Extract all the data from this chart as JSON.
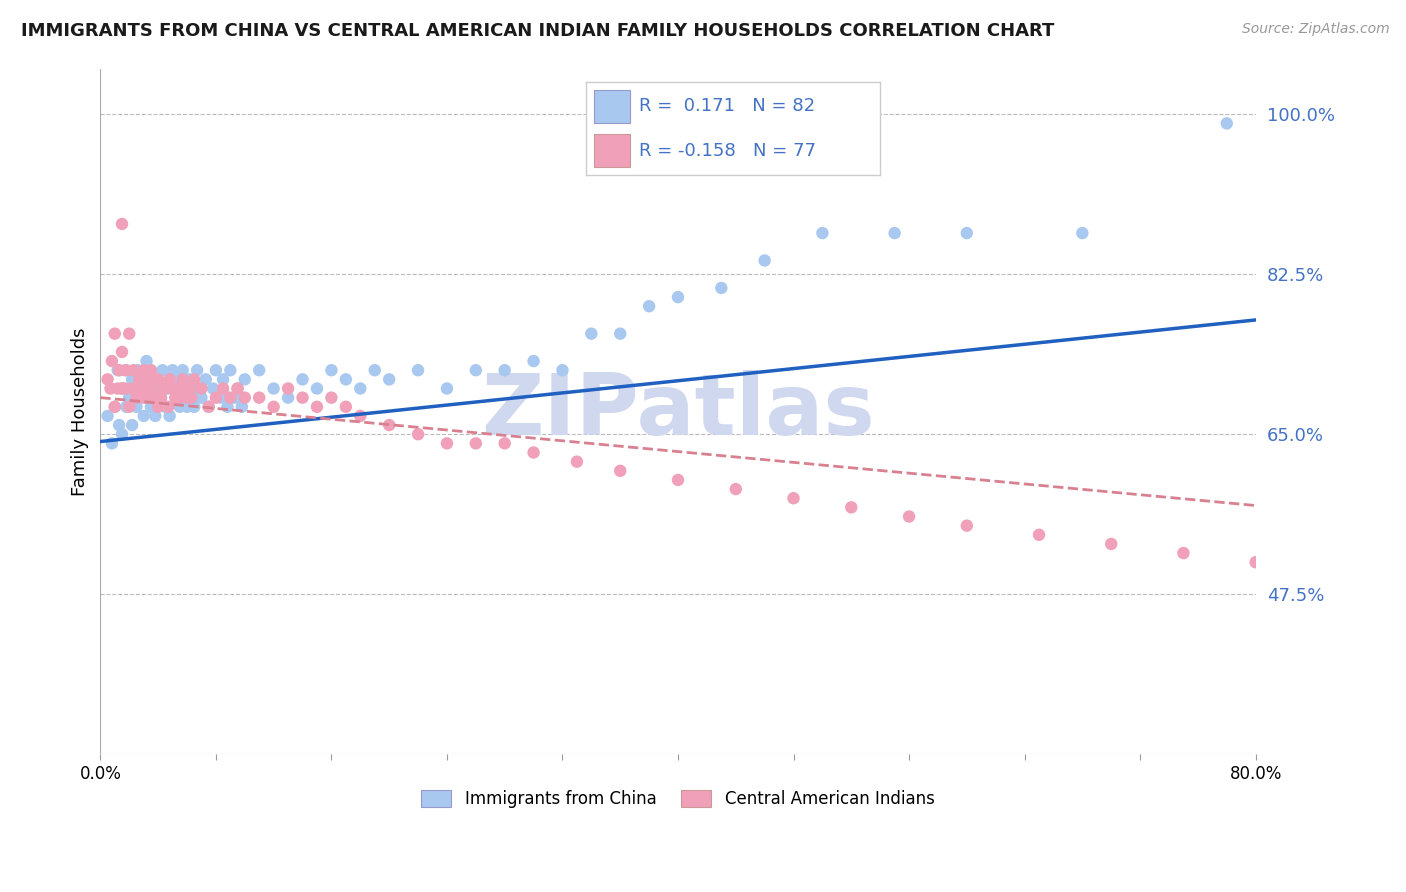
{
  "title": "IMMIGRANTS FROM CHINA VS CENTRAL AMERICAN INDIAN FAMILY HOUSEHOLDS CORRELATION CHART",
  "source": "Source: ZipAtlas.com",
  "ylabel": "Family Households",
  "y_ticks": [
    0.475,
    0.65,
    0.825,
    1.0
  ],
  "y_tick_labels": [
    "47.5%",
    "65.0%",
    "82.5%",
    "100.0%"
  ],
  "x_min": 0.0,
  "x_max": 0.8,
  "y_min": 0.3,
  "y_max": 1.05,
  "color_blue": "#A8C8F0",
  "color_pink": "#F0A0B8",
  "trendline_blue": "#2060C0",
  "trendline_pink": "#D88090",
  "label_china": "Immigrants from China",
  "label_indian": "Central American Indians",
  "watermark_text": "ZIPatlas",
  "watermark_color": "#D0D8F0",
  "blue_trendline_start_y": 0.642,
  "blue_trendline_end_y": 0.775,
  "pink_trendline_start_y": 0.69,
  "pink_trendline_end_y": 0.572,
  "blue_x": [
    0.005,
    0.008,
    0.01,
    0.012,
    0.013,
    0.015,
    0.015,
    0.017,
    0.018,
    0.02,
    0.022,
    0.022,
    0.023,
    0.025,
    0.026,
    0.028,
    0.03,
    0.03,
    0.032,
    0.033,
    0.035,
    0.035,
    0.037,
    0.038,
    0.04,
    0.042,
    0.043,
    0.045,
    0.047,
    0.048,
    0.05,
    0.052,
    0.053,
    0.055,
    0.057,
    0.058,
    0.06,
    0.062,
    0.063,
    0.065,
    0.067,
    0.068,
    0.07,
    0.073,
    0.075,
    0.078,
    0.08,
    0.083,
    0.085,
    0.088,
    0.09,
    0.093,
    0.095,
    0.098,
    0.1,
    0.11,
    0.12,
    0.13,
    0.14,
    0.15,
    0.16,
    0.17,
    0.18,
    0.19,
    0.2,
    0.22,
    0.24,
    0.26,
    0.28,
    0.3,
    0.32,
    0.34,
    0.36,
    0.38,
    0.4,
    0.43,
    0.46,
    0.5,
    0.55,
    0.6,
    0.68,
    0.78
  ],
  "blue_y": [
    0.67,
    0.64,
    0.68,
    0.72,
    0.66,
    0.7,
    0.65,
    0.72,
    0.68,
    0.69,
    0.71,
    0.66,
    0.7,
    0.68,
    0.72,
    0.69,
    0.7,
    0.67,
    0.73,
    0.7,
    0.68,
    0.72,
    0.7,
    0.67,
    0.71,
    0.69,
    0.72,
    0.68,
    0.7,
    0.67,
    0.72,
    0.69,
    0.71,
    0.68,
    0.72,
    0.7,
    0.68,
    0.71,
    0.69,
    0.68,
    0.72,
    0.7,
    0.69,
    0.71,
    0.68,
    0.7,
    0.72,
    0.69,
    0.71,
    0.68,
    0.72,
    0.69,
    0.7,
    0.68,
    0.71,
    0.72,
    0.7,
    0.69,
    0.71,
    0.7,
    0.72,
    0.71,
    0.7,
    0.72,
    0.71,
    0.72,
    0.7,
    0.72,
    0.72,
    0.73,
    0.72,
    0.76,
    0.76,
    0.79,
    0.8,
    0.81,
    0.84,
    0.87,
    0.87,
    0.87,
    0.87,
    0.99
  ],
  "pink_x": [
    0.005,
    0.007,
    0.008,
    0.01,
    0.01,
    0.012,
    0.013,
    0.015,
    0.015,
    0.017,
    0.018,
    0.02,
    0.02,
    0.022,
    0.023,
    0.025,
    0.027,
    0.028,
    0.03,
    0.03,
    0.032,
    0.033,
    0.035,
    0.035,
    0.037,
    0.038,
    0.04,
    0.04,
    0.042,
    0.043,
    0.045,
    0.047,
    0.048,
    0.05,
    0.052,
    0.053,
    0.055,
    0.057,
    0.058,
    0.06,
    0.062,
    0.063,
    0.065,
    0.07,
    0.075,
    0.08,
    0.085,
    0.09,
    0.095,
    0.1,
    0.11,
    0.12,
    0.13,
    0.14,
    0.15,
    0.16,
    0.17,
    0.18,
    0.2,
    0.22,
    0.24,
    0.26,
    0.28,
    0.3,
    0.33,
    0.36,
    0.4,
    0.44,
    0.48,
    0.52,
    0.56,
    0.6,
    0.65,
    0.7,
    0.75,
    0.8,
    0.015
  ],
  "pink_y": [
    0.71,
    0.7,
    0.73,
    0.68,
    0.76,
    0.7,
    0.72,
    0.7,
    0.74,
    0.7,
    0.72,
    0.68,
    0.76,
    0.7,
    0.72,
    0.69,
    0.71,
    0.7,
    0.72,
    0.69,
    0.71,
    0.69,
    0.7,
    0.72,
    0.69,
    0.71,
    0.68,
    0.71,
    0.69,
    0.7,
    0.7,
    0.68,
    0.71,
    0.7,
    0.69,
    0.7,
    0.69,
    0.71,
    0.7,
    0.69,
    0.7,
    0.69,
    0.71,
    0.7,
    0.68,
    0.69,
    0.7,
    0.69,
    0.7,
    0.69,
    0.69,
    0.68,
    0.7,
    0.69,
    0.68,
    0.69,
    0.68,
    0.67,
    0.66,
    0.65,
    0.64,
    0.64,
    0.64,
    0.63,
    0.62,
    0.61,
    0.6,
    0.59,
    0.58,
    0.57,
    0.56,
    0.55,
    0.54,
    0.53,
    0.52,
    0.51,
    0.88
  ]
}
